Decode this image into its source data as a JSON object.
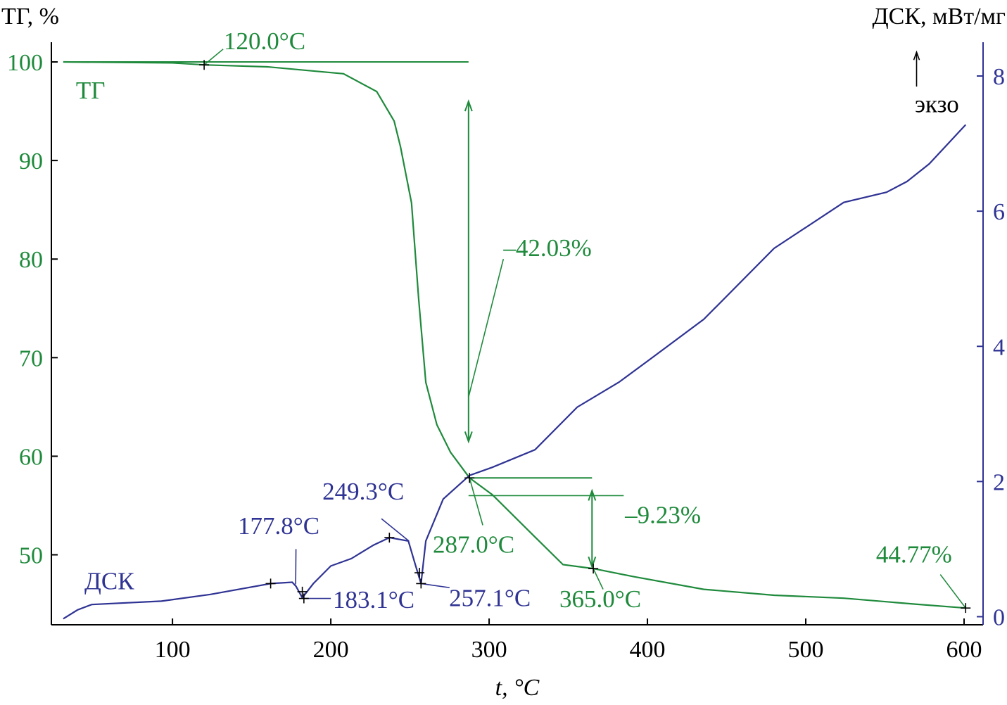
{
  "chart_data": {
    "type": "line",
    "title": "",
    "xlabel": "t, °C",
    "ylabel_left": "ТГ, %",
    "ylabel_right": "ДСК, мВт/мг",
    "xlim": [
      23.5,
      612
    ],
    "ylim_left": [
      42.9,
      102
    ],
    "ylim_right": [
      -0.12,
      8.5
    ],
    "x_ticks": [
      100,
      200,
      300,
      400,
      500,
      600
    ],
    "y_left_ticks": [
      50,
      60,
      70,
      80,
      90,
      100
    ],
    "y_right_ticks": [
      0,
      2,
      4,
      6,
      8
    ],
    "colors": {
      "tg": "#1f8a3c",
      "dsc": "#2f3393",
      "axis": "#000000",
      "right_axis": "#2f3393"
    },
    "series": [
      {
        "name": "ТГ",
        "axis": "left",
        "x": [
          31,
          100,
          120,
          160,
          208,
          229,
          240,
          244,
          251,
          255.5,
          260,
          267,
          275.6,
          287.6,
          302,
          329,
          346.7,
          365.8,
          391,
          435.6,
          480,
          524,
          569,
          601
        ],
        "y": [
          100,
          99.9,
          99.7,
          99.5,
          98.8,
          97,
          94,
          91.4,
          85.7,
          75.9,
          67.5,
          63.2,
          60.4,
          57.8,
          56.1,
          51.8,
          49.0,
          48.6,
          47.8,
          46.5,
          45.9,
          45.6,
          45.0,
          44.6
        ]
      },
      {
        "name": "ДСК",
        "axis": "right",
        "x": [
          31,
          40,
          49,
          93,
          124,
          162,
          175.6,
          178,
          182,
          189,
          200,
          213,
          227,
          237,
          249,
          253,
          257,
          260,
          271,
          287.6,
          302,
          329,
          355.6,
          382,
          400,
          435.6,
          480,
          524,
          551,
          564,
          578,
          601
        ],
        "y": [
          -0.03,
          0.1,
          0.18,
          0.23,
          0.33,
          0.49,
          0.51,
          0.45,
          0.28,
          0.49,
          0.75,
          0.86,
          1.06,
          1.17,
          1.12,
          0.8,
          0.49,
          1.12,
          1.74,
          2.09,
          2.21,
          2.47,
          3.1,
          3.47,
          3.78,
          4.4,
          5.45,
          6.13,
          6.28,
          6.44,
          6.7,
          7.28
        ]
      }
    ],
    "annotations": [
      {
        "text": "ТГ",
        "x": 39,
        "y": 96.3,
        "color": "tg"
      },
      {
        "text": "ДСК",
        "x": 44.4,
        "y": 46.5,
        "color": "dsc"
      },
      {
        "text": "120.0°C",
        "x": 132.4,
        "y": 101.3,
        "color": "tg"
      },
      {
        "text": "–42.03%",
        "x": 309,
        "y": 80.3,
        "color": "tg"
      },
      {
        "text": "–9.23%",
        "x": 385.8,
        "y": 53.2,
        "color": "tg"
      },
      {
        "text": "287.0°C",
        "x": 264.4,
        "y": 50.2,
        "color": "tg"
      },
      {
        "text": "365.0°C",
        "x": 344.4,
        "y": 44.7,
        "color": "tg"
      },
      {
        "text": "44.77%",
        "x": 544.4,
        "y": 49.2,
        "color": "tg"
      },
      {
        "text": "249.3°C",
        "x": 194.7,
        "y": 55.6,
        "color": "dsc"
      },
      {
        "text": "177.8°C",
        "x": 141.3,
        "y": 52.1,
        "color": "dsc"
      },
      {
        "text": "183.1°C",
        "x": 201.3,
        "y": 44.6,
        "color": "dsc"
      },
      {
        "text": "257.1°C",
        "x": 274.7,
        "y": 44.8,
        "color": "dsc"
      },
      {
        "text": "экзо",
        "x": 568.9,
        "y": 94.9,
        "color": "axis"
      }
    ]
  }
}
